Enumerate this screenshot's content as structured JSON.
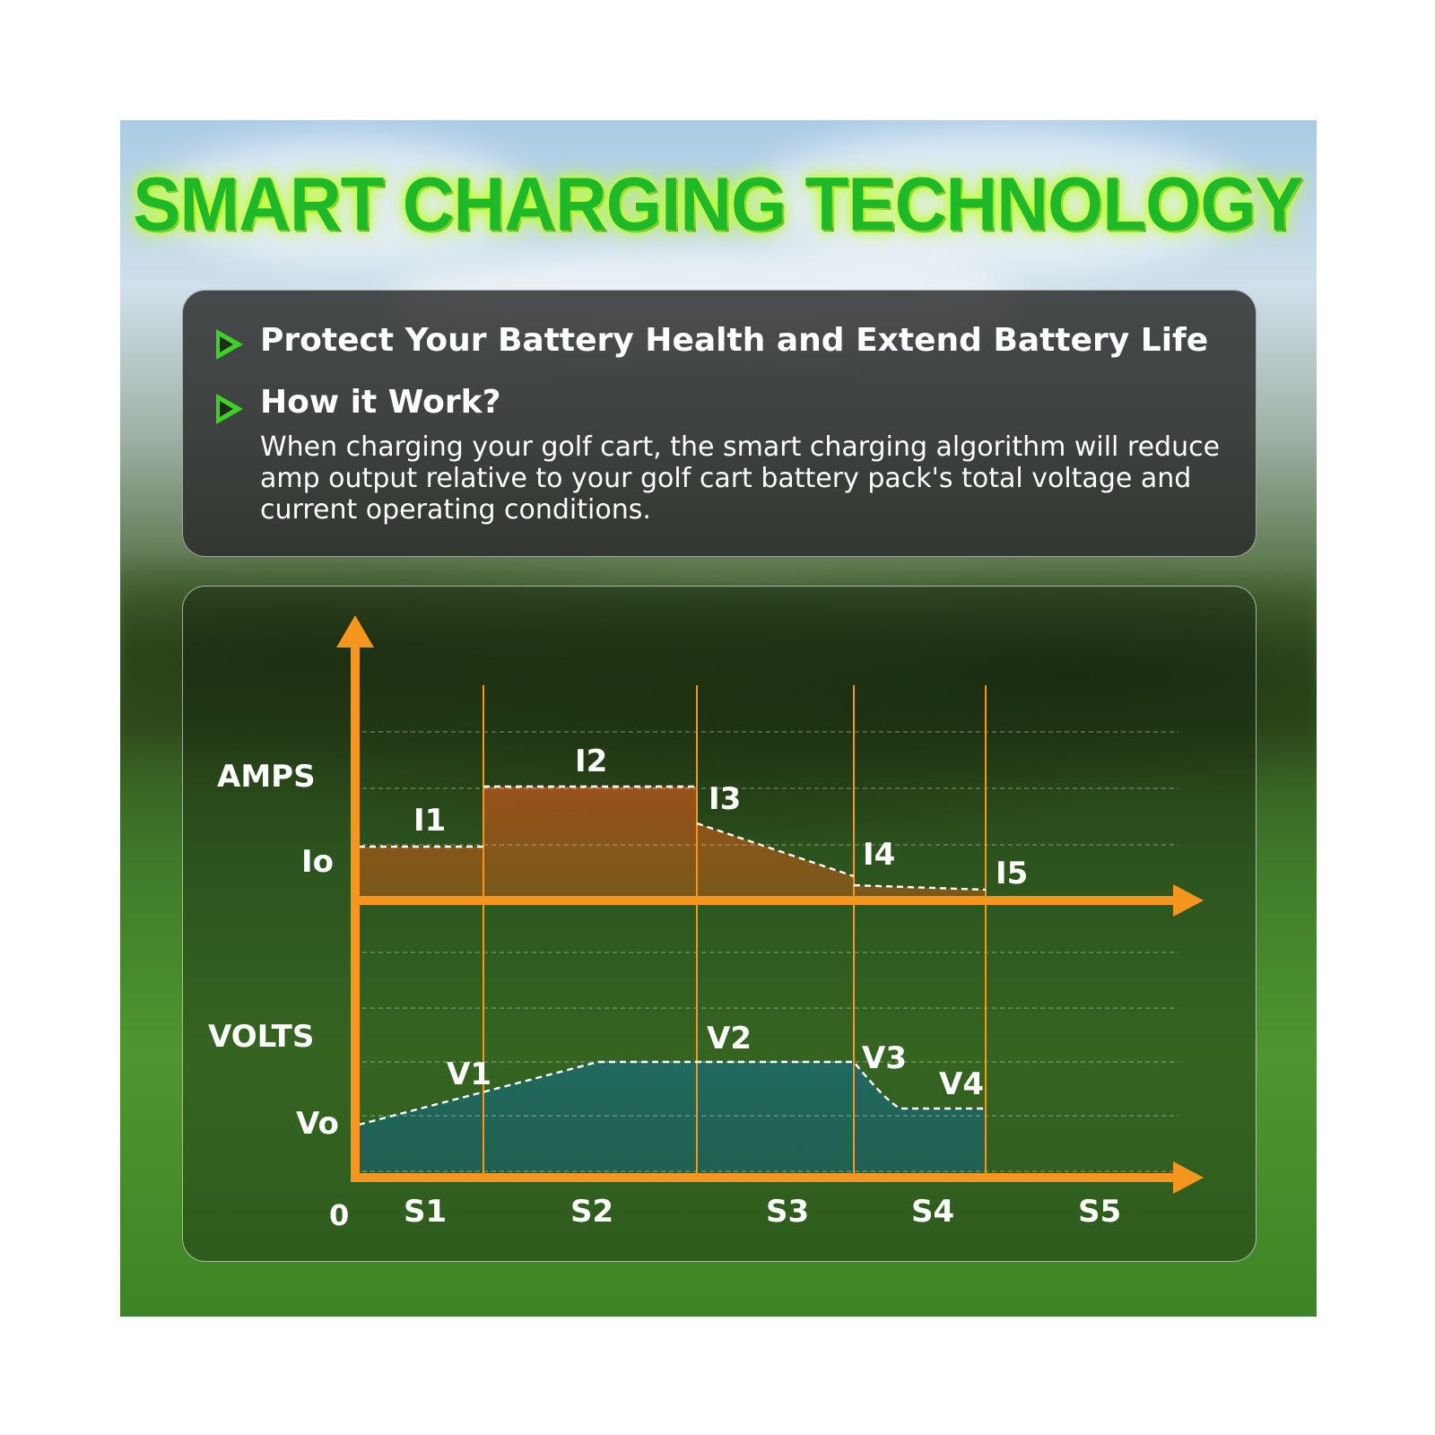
{
  "title": "SMART CHARGING TECHNOLOGY",
  "info": {
    "headline_1": "Protect Your Battery Health and Extend Battery Life",
    "headline_2": "How it Work?",
    "body": "When charging your golf cart, the smart charging algorithm will reduce amp output relative to your golf cart battery pack's total voltage and current operating conditions."
  },
  "chart": {
    "amps_label": "AMPS",
    "volts_label": "VOLTS",
    "origin_label": "0",
    "stages": [
      "S1",
      "S2",
      "S3",
      "S4",
      "S5"
    ],
    "amp_levels": [
      "I0",
      "I1",
      "I2",
      "I3",
      "I4",
      "I5"
    ],
    "amp_labels": {
      "I0": "Io",
      "I1": "I1",
      "I2": "I2",
      "I3": "I3",
      "I4": "I4",
      "I5": "I5"
    },
    "volt_labels": {
      "V0": "Vo",
      "V1": "V1",
      "V2": "V2",
      "V3": "V3",
      "V4": "V4"
    },
    "colors": {
      "axis": "#f7961e",
      "amp_fill": "#b3541a",
      "volt_fill": "#1f6a72",
      "bullet": "#3ed12a",
      "title": "#1fb829"
    }
  }
}
